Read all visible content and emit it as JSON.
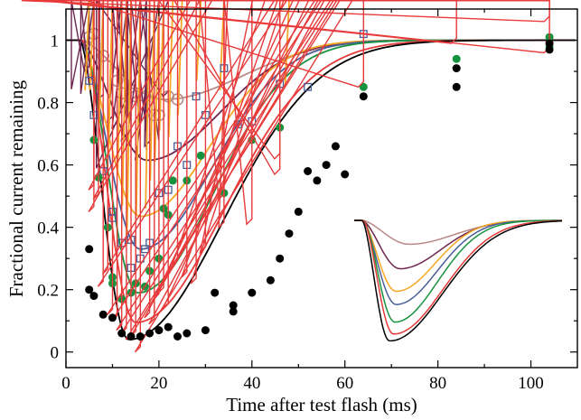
{
  "chart_data": {
    "type": "scatter",
    "xlabel": "Time after test flash (ms)",
    "ylabel": "Fractional current remaining",
    "xlim": [
      0,
      110
    ],
    "ylim": [
      -0.05,
      1.1
    ],
    "xticks": [
      0,
      20,
      40,
      60,
      80,
      100
    ],
    "yticks": [
      0,
      0.2,
      0.4,
      0.6,
      0.8,
      1
    ],
    "ytick_labels": [
      "0",
      "0.2",
      "0.4",
      "0.6",
      "0.8",
      "1"
    ],
    "grid": false,
    "legend": "none",
    "series": [
      {
        "color": "#b98a87",
        "marker": "circle-open",
        "curve": {
          "min": 0.81,
          "tmin": 21,
          "t0": 3,
          "tail": 25
        },
        "points": [
          [
            5,
            1.01
          ],
          [
            6,
            1.02
          ],
          [
            8,
            0.95
          ],
          [
            11,
            0.87
          ],
          [
            12,
            0.83
          ],
          [
            14,
            0.83
          ],
          [
            15,
            0.82
          ],
          [
            17,
            0.82
          ],
          [
            19,
            0.76
          ],
          [
            20,
            0.76
          ],
          [
            22,
            0.82
          ],
          [
            24,
            0.81
          ]
        ]
      },
      {
        "color": "#6e2550",
        "marker": "diamond-open",
        "curve": {
          "min": 0.615,
          "tmin": 17.5,
          "t0": 3,
          "tail": 23
        },
        "points": [
          [
            5,
            0.9
          ],
          [
            6,
            0.87
          ],
          [
            8,
            0.81
          ],
          [
            10,
            0.74
          ],
          [
            11,
            0.72
          ],
          [
            13,
            0.68
          ],
          [
            14,
            0.66
          ],
          [
            16,
            0.62
          ],
          [
            18,
            0.66
          ],
          [
            22,
            0.82
          ]
        ]
      },
      {
        "color": "#f5a623",
        "marker": "asterisk",
        "curve": {
          "min": 0.435,
          "tmin": 16,
          "t0": 3,
          "tail": 22
        },
        "points": [
          [
            5,
            0.84
          ],
          [
            6,
            0.84
          ],
          [
            8,
            0.73
          ],
          [
            10,
            0.69
          ],
          [
            10,
            0.63
          ],
          [
            12,
            0.57
          ],
          [
            13,
            0.47
          ],
          [
            14,
            0.43
          ],
          [
            14,
            0.37
          ],
          [
            16,
            0.44
          ],
          [
            18,
            0.46
          ],
          [
            19,
            0.55
          ],
          [
            20,
            0.61
          ],
          [
            21,
            0.71
          ],
          [
            23,
            0.69
          ],
          [
            25,
            0.76
          ],
          [
            29,
            0.87
          ],
          [
            34,
            0.84
          ],
          [
            48,
            0.85
          ]
        ]
      },
      {
        "color": "#4a5e98",
        "marker": "square-open",
        "curve": {
          "min": 0.33,
          "tmin": 16,
          "t0": 3,
          "tail": 23
        },
        "points": [
          [
            5,
            0.87
          ],
          [
            6,
            0.76
          ],
          [
            8,
            0.58
          ],
          [
            10,
            0.45
          ],
          [
            10,
            0.43
          ],
          [
            12,
            0.35
          ],
          [
            14,
            0.27
          ],
          [
            14,
            0.36
          ],
          [
            16,
            0.3
          ],
          [
            17,
            0.33
          ],
          [
            18,
            0.35
          ],
          [
            20,
            0.51
          ],
          [
            22,
            0.52
          ],
          [
            24,
            0.66
          ],
          [
            26,
            0.6
          ],
          [
            28,
            0.82
          ],
          [
            30,
            0.76
          ],
          [
            34,
            0.91
          ],
          [
            37,
            0.73
          ],
          [
            40,
            0.74
          ],
          [
            46,
            0.86
          ],
          [
            52,
            0.85
          ],
          [
            64,
            1.02
          ]
        ]
      },
      {
        "color": "#17933f",
        "marker": "circle-filled",
        "curve": {
          "min": 0.19,
          "tmin": 15.5,
          "t0": 3.5,
          "tail": 24
        },
        "points": [
          [
            6,
            0.68
          ],
          [
            7,
            0.56
          ],
          [
            9,
            0.4
          ],
          [
            10,
            0.24
          ],
          [
            10,
            0.22
          ],
          [
            12,
            0.17
          ],
          [
            14,
            0.19
          ],
          [
            15,
            0.22
          ],
          [
            17,
            0.21
          ],
          [
            18,
            0.26
          ],
          [
            20,
            0.3
          ],
          [
            21,
            0.46
          ],
          [
            22,
            0.44
          ],
          [
            23,
            0.55
          ],
          [
            26,
            0.55
          ],
          [
            29,
            0.63
          ],
          [
            34,
            0.51
          ],
          [
            40,
            0.68
          ],
          [
            46,
            0.72
          ],
          [
            64,
            0.85
          ],
          [
            84,
            0.94
          ],
          [
            104,
            0.98
          ],
          [
            104,
            1.01
          ]
        ]
      },
      {
        "color": "#e83a3a",
        "marker": "triangle-open",
        "curve": {
          "min": 0.095,
          "tmin": 15,
          "t0": 3.5,
          "tail": 28
        },
        "points": [
          [
            6,
            0.52
          ],
          [
            6,
            0.45
          ],
          [
            7,
            0.49
          ],
          [
            8,
            0.21
          ],
          [
            9,
            0.25
          ],
          [
            10,
            0.12
          ],
          [
            11,
            0.1
          ],
          [
            12,
            0.07
          ],
          [
            13,
            0.06
          ],
          [
            14,
            0.04
          ],
          [
            15,
            0.05
          ],
          [
            16,
            0.0
          ],
          [
            18,
            0.11
          ],
          [
            19,
            0.09
          ],
          [
            20,
            0.17
          ],
          [
            21,
            0.19
          ],
          [
            22,
            0.14
          ],
          [
            24,
            0.28
          ],
          [
            26,
            0.24
          ],
          [
            28,
            0.22
          ],
          [
            30,
            0.32
          ],
          [
            34,
            0.4
          ],
          [
            34,
            0.49
          ],
          [
            40,
            0.41
          ],
          [
            46,
            0.57
          ],
          [
            46,
            0.62
          ],
          [
            64,
            0.85
          ],
          [
            84,
            0.99
          ],
          [
            104,
            1.06
          ],
          [
            104,
            0.96
          ]
        ]
      },
      {
        "color": "#000000",
        "marker": "circle-filled",
        "curve": {
          "min": 0.04,
          "tmin": 13.5,
          "t0": 3,
          "tail": 30
        },
        "points": [
          [
            5,
            0.33
          ],
          [
            5,
            0.2
          ],
          [
            6,
            0.18
          ],
          [
            8,
            0.12
          ],
          [
            10,
            0.11
          ],
          [
            12,
            0.06
          ],
          [
            14,
            0.05
          ],
          [
            16,
            0.05
          ],
          [
            18,
            0.06
          ],
          [
            20,
            0.07
          ],
          [
            22,
            0.08
          ],
          [
            24,
            0.05
          ],
          [
            26,
            0.06
          ],
          [
            30,
            0.07
          ],
          [
            32,
            0.19
          ],
          [
            36,
            0.15
          ],
          [
            36,
            0.13
          ],
          [
            40,
            0.19
          ],
          [
            44,
            0.23
          ],
          [
            46,
            0.3
          ],
          [
            48,
            0.38
          ],
          [
            50,
            0.45
          ],
          [
            52,
            0.58
          ],
          [
            54,
            0.55
          ],
          [
            56,
            0.6
          ],
          [
            58,
            0.66
          ],
          [
            60,
            0.57
          ],
          [
            64,
            0.82
          ],
          [
            84,
            0.91
          ],
          [
            84,
            0.85
          ],
          [
            104,
            0.97
          ],
          [
            104,
            0.99
          ]
        ]
      }
    ]
  }
}
